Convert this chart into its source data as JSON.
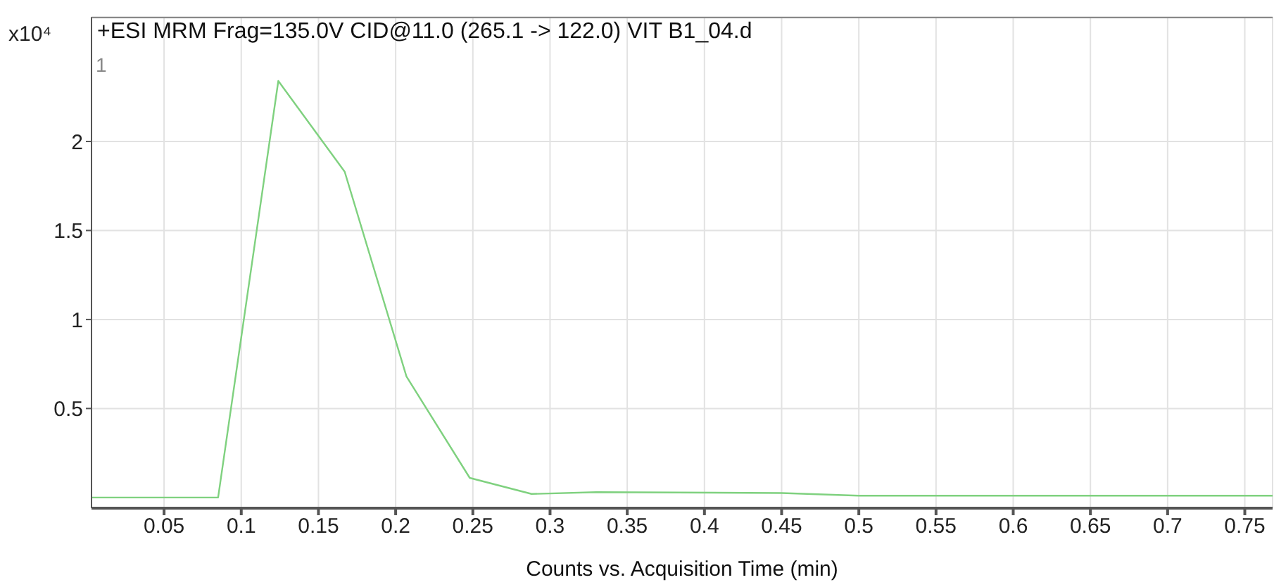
{
  "chart_data": {
    "type": "line",
    "title": "+ESI MRM Frag=135.0V CID@11.0 (265.1 -> 122.0) VIT B1_04.d",
    "xlabel": "Counts vs. Acquisition Time (min)",
    "ylabel": "x10⁴",
    "annotations": [
      "1"
    ],
    "x": [
      0.003,
      0.085,
      0.124,
      0.167,
      0.207,
      0.248,
      0.288,
      0.33,
      0.45,
      0.5,
      0.768
    ],
    "series": [
      {
        "color": "#7fd17f",
        "values": [
          0.0,
          0.0,
          2.34,
          1.83,
          0.68,
          0.11,
          0.02,
          0.03,
          0.025,
          0.01,
          0.01
        ]
      }
    ],
    "xlim": [
      0.003,
      0.768
    ],
    "xticks": [
      0.05,
      0.1,
      0.15,
      0.2,
      0.25,
      0.3,
      0.35,
      0.4,
      0.45,
      0.5,
      0.55,
      0.6,
      0.65,
      0.7,
      0.75
    ],
    "ylim": [
      -0.06,
      2.7
    ],
    "yticks": [
      0.5,
      1,
      1.5,
      2
    ],
    "grid": true,
    "marker": "none",
    "line_style": "solid",
    "legend": false
  }
}
